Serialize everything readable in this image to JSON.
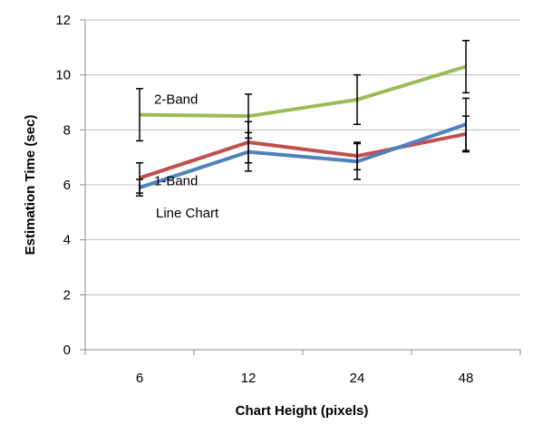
{
  "chart_data": {
    "type": "line",
    "xlabel": "Chart Height  (pixels)",
    "ylabel": "Estimation Time (sec)",
    "categories": [
      "6",
      "12",
      "24",
      "48"
    ],
    "ylim": [
      0,
      12
    ],
    "yticks": [
      "0",
      "2",
      "4",
      "6",
      "8",
      "10",
      "12"
    ],
    "grid": true,
    "series": [
      {
        "name": "2-Band",
        "color": "#9bbb59",
        "values": [
          8.55,
          8.5,
          9.1,
          10.3
        ],
        "error": [
          0.95,
          0.8,
          0.9,
          0.95
        ]
      },
      {
        "name": "1-Band",
        "color": "#c0504d",
        "values": [
          6.25,
          7.55,
          7.05,
          7.85
        ],
        "error": [
          0.55,
          0.75,
          0.5,
          0.65
        ]
      },
      {
        "name": "Line Chart",
        "color": "#4f81bd",
        "values": [
          5.9,
          7.2,
          6.85,
          8.2
        ],
        "error": [
          0.3,
          0.7,
          0.65,
          0.95
        ]
      }
    ]
  }
}
